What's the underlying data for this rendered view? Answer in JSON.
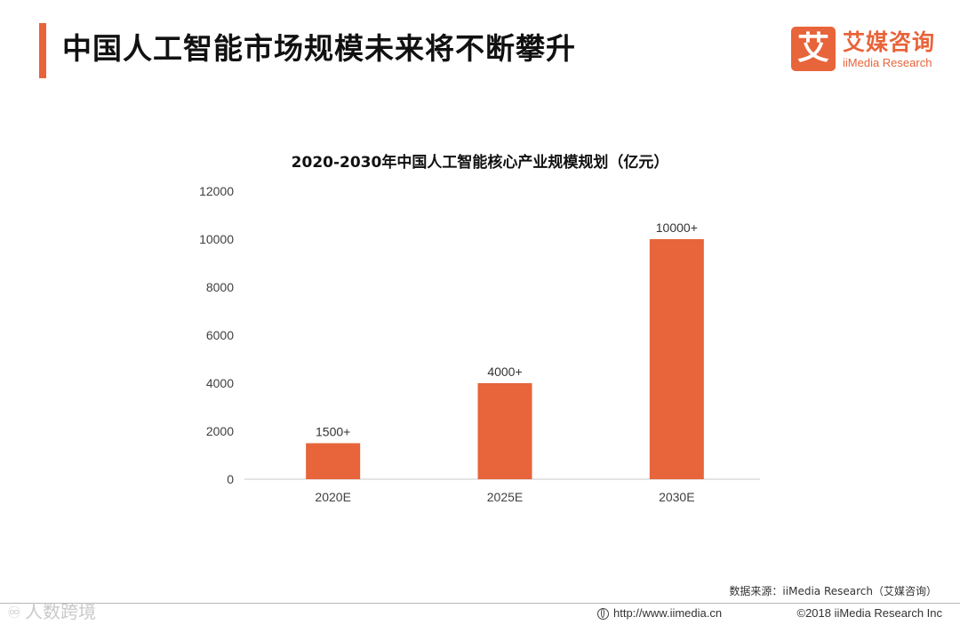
{
  "header": {
    "title": "中国人工智能市场规模未来将不断攀升"
  },
  "logo": {
    "glyph": "艾",
    "cn": "艾媒咨询",
    "en": "iiMedia Research"
  },
  "chart_data": {
    "type": "bar",
    "title": "2020-2030年中国人工智能核心产业规模规划（亿元）",
    "categories": [
      "2020E",
      "2025E",
      "2030E"
    ],
    "values": [
      1500,
      4000,
      10000
    ],
    "data_labels": [
      "1500+",
      "4000+",
      "10000+"
    ],
    "yticks": [
      0,
      2000,
      4000,
      6000,
      8000,
      10000,
      12000
    ],
    "ylim": [
      0,
      12000
    ],
    "xlabel": "",
    "ylabel": "",
    "grid": false,
    "bar_color": "#e8643a"
  },
  "footer": {
    "source": "数据来源：iiMedia Research（艾媒咨询）",
    "url": "http://www.iimedia.cn",
    "copyright": "©2018  iiMedia Research  Inc",
    "watermark": "人数跨境"
  },
  "colors": {
    "accent": "#e8643a",
    "text": "#333333"
  }
}
